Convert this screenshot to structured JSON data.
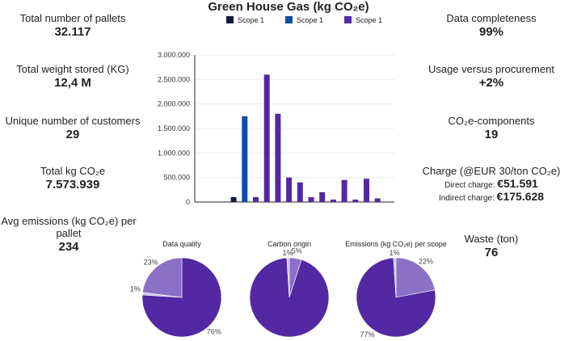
{
  "kpis_left": [
    {
      "label": "Total number of pallets",
      "value": "32.117"
    },
    {
      "label": "Total weight stored (KG)",
      "value": "12,4 M"
    },
    {
      "label": "Unique number of customers",
      "value": "29"
    },
    {
      "label": "Total kg CO₂e",
      "value": "7.573.939"
    },
    {
      "label": "Avg emissions (kg CO₂e) per pallet",
      "value": "234"
    }
  ],
  "kpis_right": [
    {
      "label": "Data completeness",
      "value": "99%"
    },
    {
      "label": "Usage versus procurement",
      "value": "+2%"
    },
    {
      "label": "CO₂e-components",
      "value": "19"
    },
    {
      "label": "Charge (@EUR 30/ton CO₂e)",
      "direct_label": "Direct charge:",
      "direct_value": "€51.591",
      "indirect_label": "Indirect charge:",
      "indirect_value": "€175.628"
    },
    {
      "label": "Waste (ton)",
      "value": "76"
    }
  ],
  "chart_data": [
    {
      "type": "bar",
      "title": "Green House Gas (kg CO₂e)",
      "legend_position": "top",
      "ylim": [
        0,
        3000000
      ],
      "yticks": [
        "0",
        "500.000",
        "1.000.000",
        "1.500.000",
        "2.000.000",
        "2.500.000",
        "3.000.000"
      ],
      "grid": true,
      "series": [
        {
          "name": "Scope 1",
          "color": "#0f1a3a",
          "values": [
            0,
            0,
            0,
            100000,
            0,
            0,
            0,
            0,
            0,
            0,
            0,
            0,
            0,
            0,
            0,
            0,
            0
          ]
        },
        {
          "name": "Scope 1",
          "color": "#0d4fa8",
          "values": [
            0,
            0,
            0,
            0,
            1750000,
            0,
            0,
            0,
            0,
            0,
            0,
            0,
            0,
            0,
            0,
            0,
            0
          ]
        },
        {
          "name": "Scope 1",
          "color": "#5229a3",
          "values": [
            0,
            0,
            0,
            0,
            0,
            100000,
            2600000,
            1800000,
            500000,
            400000,
            100000,
            200000,
            50000,
            450000,
            50000,
            475000,
            75000
          ]
        }
      ]
    },
    {
      "type": "pie",
      "title": "Data quality",
      "slices": [
        {
          "value": 76,
          "label": "76%",
          "color": "#5229a3"
        },
        {
          "value": 1,
          "label": "1%",
          "color": "#cbbdf0"
        },
        {
          "value": 23,
          "label": "23%",
          "color": "#8c70c6"
        }
      ]
    },
    {
      "type": "pie",
      "title": "Carbon origin",
      "slices": [
        {
          "value": 5,
          "label": "5%",
          "color": "#8c70c6"
        },
        {
          "value": 94,
          "label": "94%",
          "color": "#5229a3"
        },
        {
          "value": 1,
          "label": "1%",
          "color": "#cbbdf0"
        }
      ]
    },
    {
      "type": "pie",
      "title": "Emissions (kg CO₂e) per scope",
      "slices": [
        {
          "value": 22,
          "label": "22%",
          "color": "#8c70c6"
        },
        {
          "value": 77,
          "label": "77%",
          "color": "#5229a3"
        },
        {
          "value": 1,
          "label": "1%",
          "color": "#cbbdf0"
        }
      ]
    }
  ]
}
